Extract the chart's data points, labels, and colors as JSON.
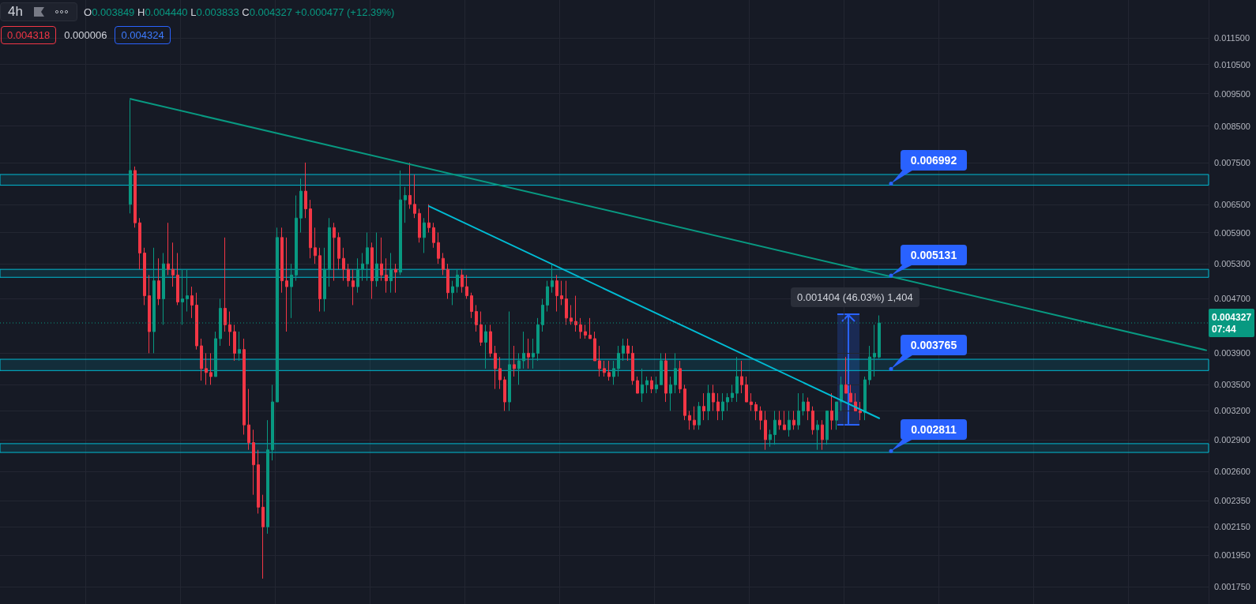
{
  "chart_data": {
    "type": "candlestick",
    "title": "4h",
    "subtitle": "O0.003849 H0.004440 L0.003833 C0.004327 +0.000477 (+12.39%)",
    "categories": [
      null,
      null,
      null,
      null,
      null,
      null,
      null,
      null,
      null,
      null,
      null,
      null,
      null,
      null,
      null,
      null,
      null,
      null,
      null,
      null,
      null,
      null,
      null,
      null,
      null,
      null,
      null,
      null,
      null,
      null,
      null,
      null,
      null,
      null,
      null,
      null,
      null,
      null,
      null,
      null,
      null,
      null,
      null,
      null,
      null,
      null,
      null,
      null,
      null,
      null,
      null,
      null,
      null,
      null,
      null,
      null,
      null,
      null,
      null,
      null,
      null,
      null,
      null,
      null,
      null,
      null,
      null,
      null,
      null,
      null,
      null,
      null,
      null,
      null,
      null,
      null,
      null,
      null,
      null,
      null,
      null,
      null,
      null,
      null,
      null,
      null,
      null,
      null,
      null,
      null,
      null,
      null,
      null,
      null,
      null,
      null,
      null,
      null,
      null,
      null,
      null,
      null,
      null,
      null,
      null,
      null,
      null,
      null,
      null,
      null,
      null,
      null,
      null,
      null,
      null,
      null,
      null,
      null,
      null,
      null,
      null,
      null,
      null,
      null,
      null,
      null,
      null,
      null,
      null,
      null,
      null,
      null,
      null,
      null,
      null,
      null,
      null,
      null,
      null,
      null,
      null,
      null,
      null,
      null,
      null,
      null,
      null,
      null,
      null,
      null,
      null,
      null,
      null,
      null,
      null,
      null,
      null,
      null,
      null,
      null,
      null,
      null,
      null,
      null,
      null,
      null,
      null,
      null,
      null,
      null,
      null,
      null,
      null,
      null,
      null,
      null,
      null,
      null,
      null,
      null,
      null,
      null,
      null,
      null,
      null,
      null,
      null,
      null,
      null,
      null,
      null,
      null,
      null,
      null,
      null,
      null,
      null,
      null,
      null,
      null,
      null,
      null,
      null,
      null,
      null,
      null,
      null,
      null,
      null,
      null,
      null,
      null,
      null,
      null,
      null,
      null,
      null,
      null,
      null,
      null,
      null,
      null,
      null,
      null,
      null,
      null,
      null,
      null,
      null,
      null,
      null,
      null,
      null,
      null,
      null,
      null,
      null,
      null,
      null,
      null,
      null,
      null,
      null,
      null,
      null,
      null,
      null,
      null,
      null,
      null,
      null,
      null,
      null,
      null,
      null
    ],
    "ohlc": [
      null,
      null,
      null,
      null,
      null,
      null,
      null,
      null,
      null,
      null,
      null,
      null,
      null,
      null,
      null,
      null,
      null,
      null,
      null,
      null,
      null,
      null,
      null,
      null,
      null,
      null,
      null,
      [
        0.0065,
        0.0093,
        0.0063,
        0.0073
      ],
      [
        0.0073,
        0.0074,
        0.006,
        0.0061
      ],
      [
        0.0061,
        0.0062,
        0.0052,
        0.0055
      ],
      [
        0.0055,
        0.0056,
        0.0046,
        0.00475
      ],
      [
        0.00475,
        0.0051,
        0.0039,
        0.0042
      ],
      [
        0.0042,
        0.0056,
        0.0039,
        0.005
      ],
      [
        0.005,
        0.0054,
        0.0046,
        0.0047
      ],
      [
        0.0047,
        0.0055,
        0.0043,
        0.0053
      ],
      [
        0.0053,
        0.0061,
        0.0051,
        0.0052
      ],
      [
        0.0052,
        0.0057,
        0.0049,
        0.0051
      ],
      [
        0.0051,
        0.0055,
        0.0046,
        0.00465
      ],
      [
        0.00465,
        0.0052,
        0.0043,
        0.0047
      ],
      [
        0.0047,
        0.0052,
        0.0045,
        0.00475
      ],
      [
        0.00475,
        0.0049,
        0.0044,
        0.0046
      ],
      [
        0.0046,
        0.0048,
        0.00395,
        0.004
      ],
      [
        0.004,
        0.0041,
        0.00355,
        0.0037
      ],
      [
        0.0037,
        0.0039,
        0.0035,
        0.00365
      ],
      [
        0.00365,
        0.0039,
        0.0035,
        0.0036
      ],
      [
        0.0036,
        0.0042,
        0.0036,
        0.0041
      ],
      [
        0.0041,
        0.0047,
        0.004,
        0.00455
      ],
      [
        0.00455,
        0.0058,
        0.0042,
        0.0043
      ],
      [
        0.0043,
        0.0045,
        0.004,
        0.0042
      ],
      [
        0.0042,
        0.0043,
        0.0038,
        0.0039
      ],
      [
        0.0039,
        0.0042,
        0.0038,
        0.00395
      ],
      [
        0.00395,
        0.0041,
        0.00295,
        0.00305
      ],
      [
        0.00305,
        0.00345,
        0.0028,
        0.00287
      ],
      [
        0.00287,
        0.003,
        0.0024,
        0.00266
      ],
      [
        0.00266,
        0.0028,
        0.00225,
        0.0023
      ],
      [
        0.0023,
        0.0024,
        0.0018,
        0.00215
      ],
      [
        0.00215,
        0.0031,
        0.0021,
        0.0028
      ],
      [
        0.0028,
        0.0035,
        0.0027,
        0.0033
      ],
      [
        0.0033,
        0.006,
        0.0033,
        0.0058
      ],
      [
        0.0058,
        0.006,
        0.0048,
        0.005
      ],
      [
        0.005,
        0.0058,
        0.0042,
        0.0049
      ],
      [
        0.0049,
        0.0053,
        0.0044,
        0.0051
      ],
      [
        0.0051,
        0.0067,
        0.005,
        0.0062
      ],
      [
        0.0062,
        0.0071,
        0.0059,
        0.0068
      ],
      [
        0.0068,
        0.0075,
        0.0062,
        0.0064
      ],
      [
        0.0064,
        0.0066,
        0.0054,
        0.0056
      ],
      [
        0.0056,
        0.006,
        0.0053,
        0.00545
      ],
      [
        0.00545,
        0.0056,
        0.0045,
        0.0047
      ],
      [
        0.0047,
        0.0056,
        0.0045,
        0.0052
      ],
      [
        0.0052,
        0.0062,
        0.0049,
        0.006
      ],
      [
        0.006,
        0.0061,
        0.005,
        0.0058
      ],
      [
        0.0058,
        0.0059,
        0.0052,
        0.0054
      ],
      [
        0.0054,
        0.0056,
        0.005,
        0.0052
      ],
      [
        0.0052,
        0.0053,
        0.0049,
        0.005
      ],
      [
        0.005,
        0.0052,
        0.0046,
        0.0049
      ],
      [
        0.0049,
        0.0054,
        0.0048,
        0.0052
      ],
      [
        0.0052,
        0.0055,
        0.005,
        0.0053
      ],
      [
        0.0053,
        0.0059,
        0.005,
        0.0056
      ],
      [
        0.0056,
        0.0057,
        0.0047,
        0.005
      ],
      [
        0.005,
        0.0059,
        0.0049,
        0.0053
      ],
      [
        0.0053,
        0.0058,
        0.005,
        0.0051
      ],
      [
        0.0051,
        0.0054,
        0.0048,
        0.005
      ],
      [
        0.005,
        0.0055,
        0.0048,
        0.0052
      ],
      [
        0.0052,
        0.0053,
        0.0048,
        0.00515
      ],
      [
        0.00515,
        0.0073,
        0.0051,
        0.0066
      ],
      [
        0.0066,
        0.0069,
        0.0061,
        0.0067
      ],
      [
        0.0067,
        0.0075,
        0.0064,
        0.0065
      ],
      [
        0.0065,
        0.0072,
        0.0062,
        0.0063
      ],
      [
        0.0063,
        0.0064,
        0.0057,
        0.0058
      ],
      [
        0.0058,
        0.0062,
        0.0055,
        0.0061
      ],
      [
        0.0061,
        0.0065,
        0.0059,
        0.006
      ],
      [
        0.006,
        0.0061,
        0.0056,
        0.0057
      ],
      [
        0.0057,
        0.0059,
        0.0053,
        0.0054
      ],
      [
        0.0054,
        0.0055,
        0.0051,
        0.0052
      ],
      [
        0.0052,
        0.0053,
        0.0047,
        0.0048
      ],
      [
        0.0048,
        0.005,
        0.0046,
        0.0049
      ],
      [
        0.0049,
        0.0052,
        0.0048,
        0.0051
      ],
      [
        0.0051,
        0.0052,
        0.0048,
        0.0049
      ],
      [
        0.0049,
        0.0051,
        0.0047,
        0.00475
      ],
      [
        0.00475,
        0.0048,
        0.0044,
        0.0045
      ],
      [
        0.0045,
        0.0046,
        0.0042,
        0.0043
      ],
      [
        0.0043,
        0.0045,
        0.004,
        0.00405
      ],
      [
        0.00405,
        0.0043,
        0.0037,
        0.0042
      ],
      [
        0.0042,
        0.0043,
        0.00385,
        0.0039
      ],
      [
        0.0039,
        0.004,
        0.00345,
        0.0037
      ],
      [
        0.0037,
        0.00385,
        0.00345,
        0.00356
      ],
      [
        0.00356,
        0.0036,
        0.0032,
        0.0033
      ],
      [
        0.0033,
        0.0045,
        0.0032,
        0.00375
      ],
      [
        0.00375,
        0.004,
        0.0036,
        0.0037
      ],
      [
        0.0037,
        0.0039,
        0.0035,
        0.0038
      ],
      [
        0.0038,
        0.0042,
        0.0037,
        0.0039
      ],
      [
        0.0039,
        0.0041,
        0.0037,
        0.00385
      ],
      [
        0.00385,
        0.0041,
        0.0037,
        0.0039
      ],
      [
        0.0039,
        0.0044,
        0.0038,
        0.0043
      ],
      [
        0.0043,
        0.0047,
        0.0042,
        0.0046
      ],
      [
        0.0046,
        0.005,
        0.0045,
        0.0049
      ],
      [
        0.0049,
        0.0053,
        0.0048,
        0.005
      ],
      [
        0.005,
        0.0051,
        0.0045,
        0.00475
      ],
      [
        0.00475,
        0.005,
        0.0046,
        0.0047
      ],
      [
        0.0047,
        0.005,
        0.0043,
        0.0044
      ],
      [
        0.0044,
        0.0046,
        0.0043,
        0.00435
      ],
      [
        0.00435,
        0.00475,
        0.0042,
        0.0043
      ],
      [
        0.0043,
        0.0044,
        0.0041,
        0.0042
      ],
      [
        0.0042,
        0.0043,
        0.0041,
        0.00415
      ],
      [
        0.00415,
        0.0044,
        0.0041,
        0.0041
      ],
      [
        0.0041,
        0.0042,
        0.0038,
        0.0038
      ],
      [
        0.0038,
        0.004,
        0.0036,
        0.0037
      ],
      [
        0.0037,
        0.0038,
        0.0036,
        0.00365
      ],
      [
        0.00365,
        0.0038,
        0.00355,
        0.0036
      ],
      [
        0.0036,
        0.0038,
        0.0035,
        0.0037
      ],
      [
        0.0037,
        0.004,
        0.0036,
        0.0039
      ],
      [
        0.0039,
        0.0041,
        0.0038,
        0.004
      ],
      [
        0.004,
        0.0041,
        0.0038,
        0.0039
      ],
      [
        0.0039,
        0.004,
        0.0035,
        0.00355
      ],
      [
        0.00355,
        0.0036,
        0.0034,
        0.0034
      ],
      [
        0.0034,
        0.0037,
        0.0033,
        0.0035
      ],
      [
        0.0035,
        0.0036,
        0.0034,
        0.00355
      ],
      [
        0.00355,
        0.0036,
        0.0034,
        0.00345
      ],
      [
        0.00345,
        0.0036,
        0.0034,
        0.0035
      ],
      [
        0.0035,
        0.0039,
        0.0035,
        0.0038
      ],
      [
        0.0038,
        0.0039,
        0.0033,
        0.0034
      ],
      [
        0.0034,
        0.0036,
        0.0032,
        0.0035
      ],
      [
        0.0035,
        0.0039,
        0.0034,
        0.0037
      ],
      [
        0.0037,
        0.0038,
        0.0034,
        0.00345
      ],
      [
        0.00345,
        0.0035,
        0.0031,
        0.00315
      ],
      [
        0.00315,
        0.0032,
        0.003,
        0.0031
      ],
      [
        0.0031,
        0.00325,
        0.003,
        0.00305
      ],
      [
        0.00305,
        0.0033,
        0.003,
        0.00325
      ],
      [
        0.00325,
        0.0034,
        0.0031,
        0.0032
      ],
      [
        0.0032,
        0.0035,
        0.0031,
        0.0034
      ],
      [
        0.0034,
        0.0035,
        0.0032,
        0.0033
      ],
      [
        0.0033,
        0.0034,
        0.0031,
        0.0032
      ],
      [
        0.0032,
        0.0034,
        0.0031,
        0.0033
      ],
      [
        0.0033,
        0.0034,
        0.0032,
        0.00335
      ],
      [
        0.00335,
        0.0035,
        0.0033,
        0.0034
      ],
      [
        0.0034,
        0.00385,
        0.0033,
        0.0036
      ],
      [
        0.0036,
        0.0038,
        0.0034,
        0.0035
      ],
      [
        0.0035,
        0.0036,
        0.0033,
        0.0033
      ],
      [
        0.0033,
        0.0034,
        0.0032,
        0.00327
      ],
      [
        0.00327,
        0.0033,
        0.0031,
        0.0032
      ],
      [
        0.0032,
        0.00325,
        0.003,
        0.0031
      ],
      [
        0.0031,
        0.0032,
        0.0028,
        0.0029
      ],
      [
        0.0029,
        0.003,
        0.00283,
        0.00295
      ],
      [
        0.00295,
        0.0032,
        0.00285,
        0.0031
      ],
      [
        0.0031,
        0.0032,
        0.003,
        0.00305
      ],
      [
        0.00305,
        0.0032,
        0.003,
        0.003
      ],
      [
        0.003,
        0.0032,
        0.00293,
        0.0031
      ],
      [
        0.0031,
        0.0032,
        0.003,
        0.00305
      ],
      [
        0.00305,
        0.0034,
        0.003,
        0.0032
      ],
      [
        0.0032,
        0.0034,
        0.00315,
        0.0033
      ],
      [
        0.0033,
        0.00335,
        0.0031,
        0.0032
      ],
      [
        0.0032,
        0.00325,
        0.00295,
        0.003
      ],
      [
        0.003,
        0.0031,
        0.0028,
        0.00305
      ],
      [
        0.00305,
        0.0031,
        0.0028,
        0.0029
      ],
      [
        0.0029,
        0.0032,
        0.00285,
        0.0032
      ],
      [
        0.0032,
        0.0034,
        0.003,
        0.0031
      ],
      [
        0.0031,
        0.0033,
        0.003,
        0.0033
      ],
      [
        0.0033,
        0.0036,
        0.0032,
        0.0035
      ],
      [
        0.0035,
        0.00385,
        0.0034,
        0.0034
      ],
      [
        0.0034,
        0.0035,
        0.0033,
        0.0033
      ],
      [
        0.0033,
        0.0034,
        0.0032,
        0.0032
      ],
      [
        0.0032,
        0.0033,
        0.0031,
        0.00318
      ],
      [
        0.00318,
        0.0036,
        0.0031,
        0.00356
      ],
      [
        0.00356,
        0.004,
        0.0035,
        0.00385
      ],
      [
        0.00385,
        0.0043,
        0.0036,
        0.0039
      ],
      [
        0.003849,
        0.00444,
        0.003833,
        0.004327
      ],
      null,
      null,
      null,
      null,
      null,
      null,
      null,
      null,
      null,
      null,
      null,
      null,
      null,
      null,
      null,
      null,
      null,
      null,
      null,
      null,
      null,
      null,
      null,
      null,
      null,
      null,
      null,
      null,
      null,
      null,
      null,
      null,
      null,
      null,
      null,
      null,
      null,
      null,
      null,
      null,
      null,
      null,
      null,
      null,
      null,
      null,
      null,
      null,
      null,
      null,
      null,
      null,
      null,
      null,
      null,
      null,
      null,
      null,
      null,
      null,
      null,
      null,
      null,
      null,
      null,
      null,
      null,
      null,
      null
    ],
    "series": [
      {
        "type": "line",
        "color": "#089981",
        "values": [
          null,
          null,
          null,
          null,
          null,
          null,
          null,
          null,
          null,
          null,
          null,
          null,
          null,
          null,
          null,
          null,
          null,
          null,
          null,
          null,
          null,
          null,
          null,
          null,
          null,
          null,
          null,
          0.00933,
          null,
          null,
          null,
          null,
          null,
          null,
          null,
          null,
          null,
          null,
          null,
          null,
          null,
          null,
          null,
          null,
          null,
          null,
          null,
          null,
          null,
          null,
          null,
          null,
          null,
          null,
          null,
          null,
          null,
          null,
          null,
          null,
          null,
          null,
          null,
          null,
          null,
          null,
          null,
          null,
          null,
          null,
          null,
          null,
          null,
          null,
          null,
          null,
          null,
          null,
          null,
          null,
          null,
          null,
          null,
          null,
          null,
          null,
          null,
          null,
          null,
          null,
          null,
          null,
          null,
          null,
          null,
          null,
          null,
          null,
          null,
          null,
          null,
          null,
          null,
          null,
          null,
          null,
          null,
          null,
          null,
          null,
          null,
          null,
          null,
          null,
          null,
          null,
          null,
          null,
          null,
          null,
          null,
          null,
          null,
          null,
          null,
          null,
          null,
          null,
          null,
          null,
          null,
          null,
          null,
          null,
          null,
          null,
          null,
          null,
          null,
          null,
          null,
          null,
          null,
          null,
          null,
          null,
          null,
          null,
          null,
          null,
          null,
          null,
          null,
          null,
          null,
          null,
          null,
          null,
          null,
          null,
          null,
          null,
          null,
          null,
          null,
          null,
          null,
          null,
          null,
          null,
          null,
          null,
          null,
          null,
          null,
          null,
          null,
          null,
          null,
          null,
          null,
          null,
          null,
          null,
          null,
          null,
          null,
          null,
          null,
          null,
          null,
          null,
          null,
          null,
          null,
          null,
          null,
          null,
          null,
          null,
          null,
          null,
          null,
          null,
          null,
          null,
          null,
          null,
          null,
          null,
          null,
          null,
          null,
          null,
          null,
          null,
          null,
          null,
          null,
          null,
          null,
          null,
          null,
          null,
          null,
          null,
          null,
          null,
          null,
          null,
          null,
          null,
          null,
          null,
          null,
          null,
          null,
          null,
          null,
          null,
          null,
          null,
          null,
          null,
          null,
          null,
          null,
          null,
          null,
          null,
          null,
          null,
          null,
          null,
          0.00394
        ]
      },
      {
        "type": "line",
        "color": "#00bcd4",
        "values": [
          null,
          null,
          null,
          null,
          null,
          null,
          null,
          null,
          null,
          null,
          null,
          null,
          null,
          null,
          null,
          null,
          null,
          null,
          null,
          null,
          null,
          null,
          null,
          null,
          null,
          null,
          null,
          null,
          null,
          null,
          null,
          null,
          null,
          null,
          null,
          null,
          null,
          null,
          null,
          null,
          null,
          null,
          null,
          null,
          null,
          null,
          null,
          null,
          null,
          null,
          null,
          null,
          null,
          null,
          null,
          null,
          null,
          null,
          null,
          null,
          null,
          null,
          null,
          null,
          null,
          null,
          null,
          null,
          null,
          null,
          null,
          null,
          null,
          null,
          null,
          null,
          null,
          null,
          null,
          null,
          null,
          null,
          null,
          null,
          null,
          null,
          null,
          null,
          null,
          null,
          0.00646,
          null,
          null,
          null,
          null,
          null,
          null,
          null,
          null,
          null,
          null,
          null,
          null,
          null,
          null,
          null,
          null,
          null,
          null,
          null,
          null,
          null,
          null,
          null,
          null,
          null,
          null,
          null,
          null,
          null,
          null,
          null,
          null,
          null,
          null,
          null,
          null,
          null,
          null,
          null,
          null,
          null,
          null,
          null,
          null,
          null,
          null,
          null,
          null,
          null,
          null,
          null,
          null,
          null,
          null,
          null,
          null,
          null,
          null,
          null,
          null,
          null,
          null,
          null,
          null,
          null,
          null,
          null,
          null,
          null,
          null,
          null,
          null,
          null,
          null,
          null,
          null,
          null,
          null,
          null,
          null,
          null,
          null,
          null,
          null,
          null,
          null,
          null,
          null,
          null,
          null,
          null,
          null,
          null,
          null,
          0.00312,
          null,
          null,
          null,
          null,
          null,
          null,
          null,
          null,
          null,
          null,
          null,
          null,
          null,
          null,
          null,
          null,
          null,
          null,
          null,
          null,
          null,
          null,
          null,
          null,
          null,
          null,
          null,
          null,
          null,
          null,
          null,
          null,
          null,
          null,
          null,
          null,
          null,
          null,
          null,
          null,
          null,
          null,
          null,
          null,
          null,
          null,
          null,
          null,
          null,
          null,
          null,
          null,
          null,
          null,
          null,
          null,
          null,
          null,
          null,
          null,
          null,
          null,
          null,
          null,
          null,
          null,
          null,
          null,
          null
        ]
      }
    ],
    "ylim": [
      0.00165,
      0.0131
    ],
    "yticks": [
      {
        "value": 0.0115,
        "label": "0.011500"
      },
      {
        "value": 0.0105,
        "label": "0.010500"
      },
      {
        "value": 0.0095,
        "label": "0.009500"
      },
      {
        "value": 0.0085,
        "label": "0.008500"
      },
      {
        "value": 0.0075,
        "label": "0.007500"
      },
      {
        "value": 0.0065,
        "label": "0.006500"
      },
      {
        "value": 0.0059,
        "label": "0.005900"
      },
      {
        "value": 0.0053,
        "label": "0.005300"
      },
      {
        "value": 0.0047,
        "label": "0.004700"
      },
      {
        "value": 0.0039,
        "label": "0.003900"
      },
      {
        "value": 0.0035,
        "label": "0.003500"
      },
      {
        "value": 0.0032,
        "label": "0.003200"
      },
      {
        "value": 0.0029,
        "label": "0.002900"
      },
      {
        "value": 0.0026,
        "label": "0.002600"
      },
      {
        "value": 0.00235,
        "label": "0.002350"
      },
      {
        "value": 0.00215,
        "label": "0.002150"
      },
      {
        "value": 0.00195,
        "label": "0.001950"
      },
      {
        "value": 0.00175,
        "label": "0.001750"
      }
    ],
    "log": "y",
    "grid": true,
    "tick_labels": "y",
    "marker": "none",
    "ref_lines": [
      {
        "axis": "y",
        "value": 0.004327,
        "label": "0.004327\n07:44",
        "color": "#089981",
        "line_style": "dotted"
      }
    ],
    "bands": [
      {
        "axis": "y",
        "from": 0.00694,
        "to": 0.0072,
        "label": "0.006992",
        "color": "#00bcd4"
      },
      {
        "axis": "y",
        "from": 0.00506,
        "to": 0.0052,
        "label": "0.005131",
        "color": "#00bcd4"
      },
      {
        "axis": "y",
        "from": 0.003675,
        "to": 0.00382,
        "label": "0.003765",
        "color": "#00bcd4"
      },
      {
        "axis": "y",
        "from": 0.002775,
        "to": 0.00286,
        "label": "0.002811",
        "color": "#00bcd4"
      }
    ],
    "annotations": [
      "0.004318",
      "0.000006",
      "0.004324",
      "0.001404 (46.03%) 1,404"
    ]
  }
}
